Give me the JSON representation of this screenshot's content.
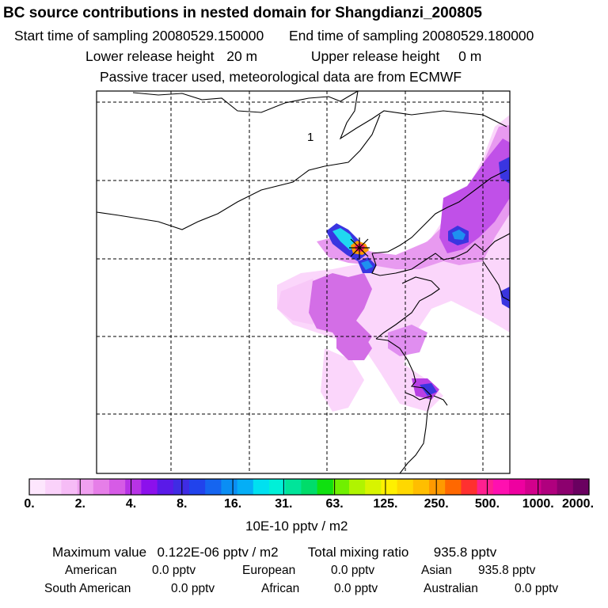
{
  "header": {
    "title": "BC  source contributions in nested domain for Shangdianzi_200805",
    "start_label": "Start time of sampling",
    "start_value": "20080529.150000",
    "end_label": "End time of sampling",
    "end_value": "20080529.180000",
    "lower_label": "Lower release height",
    "lower_value": "20 m",
    "upper_label": "Upper release height",
    "upper_value": "0 m",
    "tracer_note": "Passive tracer used, meteorological data are from ECMWF"
  },
  "map": {
    "region_label": "1",
    "receptor": "Shangdianzi station marker",
    "frame_color": "#000000",
    "grid_color": "#000000"
  },
  "colorbar": {
    "colors": [
      "#fde6fd",
      "#fad2fa",
      "#f6bcf6",
      "#f0a0f0",
      "#e67ee8",
      "#d65be6",
      "#b733e6",
      "#8c10ec",
      "#5a1ae8",
      "#3f2ce4",
      "#2143ec",
      "#1565f0",
      "#0a8ef4",
      "#05aef6",
      "#00e0f0",
      "#00f0d8",
      "#00e49a",
      "#00dc6a",
      "#10e010",
      "#70f000",
      "#b0f400",
      "#d8f400",
      "#fff000",
      "#ffd800",
      "#ffbe00",
      "#ff9a00",
      "#ff6800",
      "#ff3030",
      "#ff2090",
      "#ff10b0",
      "#ee00a0",
      "#d2008c",
      "#b0007e",
      "#8c006e",
      "#6a0060"
    ],
    "tick_labels": [
      "0.",
      "2.",
      "4.",
      "8.",
      "16.",
      "31.",
      "63.",
      "125.",
      "250.",
      "500.",
      "1000.",
      "2000."
    ],
    "units": "10E-10 pptv / m2"
  },
  "summary": {
    "max_label": "Maximum value",
    "max_value": "0.122E-06 pptv / m2",
    "total_label": "Total mixing ratio",
    "total_value": "935.8 pptv",
    "regions": [
      {
        "name": "American",
        "value": "0.0 pptv"
      },
      {
        "name": "European",
        "value": "0.0 pptv"
      },
      {
        "name": "Asian",
        "value": "935.8 pptv"
      },
      {
        "name": "South American",
        "value": "0.0 pptv"
      },
      {
        "name": "African",
        "value": "0.0 pptv"
      },
      {
        "name": "Australian",
        "value": "0.0 pptv"
      }
    ]
  }
}
